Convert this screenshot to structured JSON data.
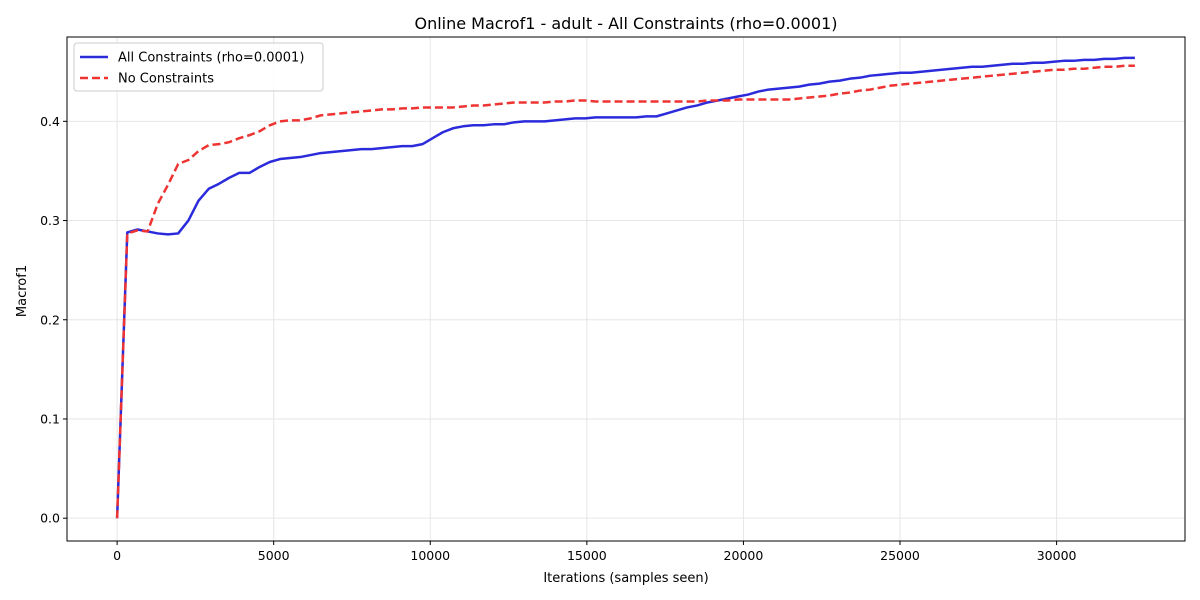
{
  "chart_data": {
    "type": "line",
    "title": "Online Macrof1 - adult - All Constraints (rho=0.0001)",
    "xlabel": "Iterations (samples seen)",
    "ylabel": "Macrof1",
    "xlim": [
      -1600,
      34100
    ],
    "ylim": [
      -0.023,
      0.485
    ],
    "xticks": [
      0,
      5000,
      10000,
      15000,
      20000,
      25000,
      30000
    ],
    "yticks": [
      0.0,
      0.1,
      0.2,
      0.3,
      0.4
    ],
    "xtick_labels": [
      "0",
      "5000",
      "10000",
      "15000",
      "20000",
      "25000",
      "30000"
    ],
    "ytick_labels": [
      "0.0",
      "0.1",
      "0.2",
      "0.3",
      "0.4"
    ],
    "grid": true,
    "legend_position": "top-left",
    "series": [
      {
        "name": "All Constraints (rho=0.0001)",
        "color": "#2b2bdc",
        "style": "solid",
        "x": [
          0,
          325,
          650,
          975,
          1300,
          1625,
          1950,
          2275,
          2600,
          2925,
          3250,
          3575,
          3900,
          4225,
          4550,
          4875,
          5200,
          5525,
          5850,
          6175,
          6500,
          6825,
          7150,
          7475,
          7800,
          8125,
          8450,
          8775,
          9100,
          9425,
          9750,
          10075,
          10400,
          10725,
          11050,
          11375,
          11700,
          12025,
          12350,
          12675,
          13000,
          13325,
          13650,
          13975,
          14300,
          14625,
          14950,
          15275,
          15600,
          15925,
          16250,
          16575,
          16900,
          17225,
          17550,
          17875,
          18200,
          18525,
          18850,
          19175,
          19500,
          19825,
          20150,
          20475,
          20800,
          21125,
          21450,
          21775,
          22100,
          22425,
          22750,
          23075,
          23400,
          23725,
          24050,
          24375,
          24700,
          25025,
          25350,
          25675,
          26000,
          26325,
          26650,
          26975,
          27300,
          27625,
          27950,
          28275,
          28600,
          28925,
          29250,
          29575,
          29900,
          30225,
          30550,
          30875,
          31200,
          31525,
          31850,
          32175,
          32500
        ],
        "y": [
          0.0,
          0.288,
          0.291,
          0.289,
          0.287,
          0.286,
          0.287,
          0.3,
          0.32,
          0.332,
          0.337,
          0.343,
          0.348,
          0.348,
          0.354,
          0.359,
          0.362,
          0.363,
          0.364,
          0.366,
          0.368,
          0.369,
          0.37,
          0.371,
          0.372,
          0.372,
          0.373,
          0.374,
          0.375,
          0.375,
          0.377,
          0.383,
          0.389,
          0.393,
          0.395,
          0.396,
          0.396,
          0.397,
          0.397,
          0.399,
          0.4,
          0.4,
          0.4,
          0.401,
          0.402,
          0.403,
          0.403,
          0.404,
          0.404,
          0.404,
          0.404,
          0.404,
          0.405,
          0.405,
          0.408,
          0.411,
          0.414,
          0.416,
          0.419,
          0.421,
          0.423,
          0.425,
          0.427,
          0.43,
          0.432,
          0.433,
          0.434,
          0.435,
          0.437,
          0.438,
          0.44,
          0.441,
          0.443,
          0.444,
          0.446,
          0.447,
          0.448,
          0.449,
          0.449,
          0.45,
          0.451,
          0.452,
          0.453,
          0.454,
          0.455,
          0.455,
          0.456,
          0.457,
          0.458,
          0.458,
          0.459,
          0.459,
          0.46,
          0.461,
          0.461,
          0.462,
          0.462,
          0.463,
          0.463,
          0.464,
          0.464
        ]
      },
      {
        "name": "No Constraints",
        "color": "#ee3333",
        "style": "dashed",
        "x": [
          0,
          325,
          650,
          975,
          1300,
          1625,
          1950,
          2275,
          2600,
          2925,
          3250,
          3575,
          3900,
          4225,
          4550,
          4875,
          5200,
          5525,
          5850,
          6175,
          6500,
          6825,
          7150,
          7475,
          7800,
          8125,
          8450,
          8775,
          9100,
          9425,
          9750,
          10075,
          10400,
          10725,
          11050,
          11375,
          11700,
          12025,
          12350,
          12675,
          13000,
          13325,
          13650,
          13975,
          14300,
          14625,
          14950,
          15275,
          15600,
          15925,
          16250,
          16575,
          16900,
          17225,
          17550,
          17875,
          18200,
          18525,
          18850,
          19175,
          19500,
          19825,
          20150,
          20475,
          20800,
          21125,
          21450,
          21775,
          22100,
          22425,
          22750,
          23075,
          23400,
          23725,
          24050,
          24375,
          24700,
          25025,
          25350,
          25675,
          26000,
          26325,
          26650,
          26975,
          27300,
          27625,
          27950,
          28275,
          28600,
          28925,
          29250,
          29575,
          29900,
          30225,
          30550,
          30875,
          31200,
          31525,
          31850,
          32175,
          32500
        ],
        "y": [
          0.0,
          0.287,
          0.29,
          0.289,
          0.317,
          0.336,
          0.357,
          0.361,
          0.37,
          0.376,
          0.377,
          0.379,
          0.383,
          0.386,
          0.39,
          0.396,
          0.4,
          0.401,
          0.401,
          0.403,
          0.406,
          0.407,
          0.408,
          0.409,
          0.41,
          0.411,
          0.412,
          0.412,
          0.413,
          0.413,
          0.414,
          0.414,
          0.414,
          0.414,
          0.415,
          0.416,
          0.416,
          0.417,
          0.418,
          0.419,
          0.419,
          0.419,
          0.419,
          0.42,
          0.42,
          0.421,
          0.421,
          0.42,
          0.42,
          0.42,
          0.42,
          0.42,
          0.42,
          0.42,
          0.42,
          0.42,
          0.42,
          0.42,
          0.421,
          0.421,
          0.421,
          0.422,
          0.422,
          0.422,
          0.422,
          0.422,
          0.422,
          0.423,
          0.424,
          0.425,
          0.426,
          0.428,
          0.429,
          0.431,
          0.432,
          0.434,
          0.436,
          0.437,
          0.438,
          0.439,
          0.44,
          0.441,
          0.442,
          0.443,
          0.444,
          0.445,
          0.446,
          0.447,
          0.448,
          0.449,
          0.45,
          0.451,
          0.452,
          0.452,
          0.453,
          0.453,
          0.454,
          0.455,
          0.455,
          0.456,
          0.456
        ]
      }
    ]
  }
}
